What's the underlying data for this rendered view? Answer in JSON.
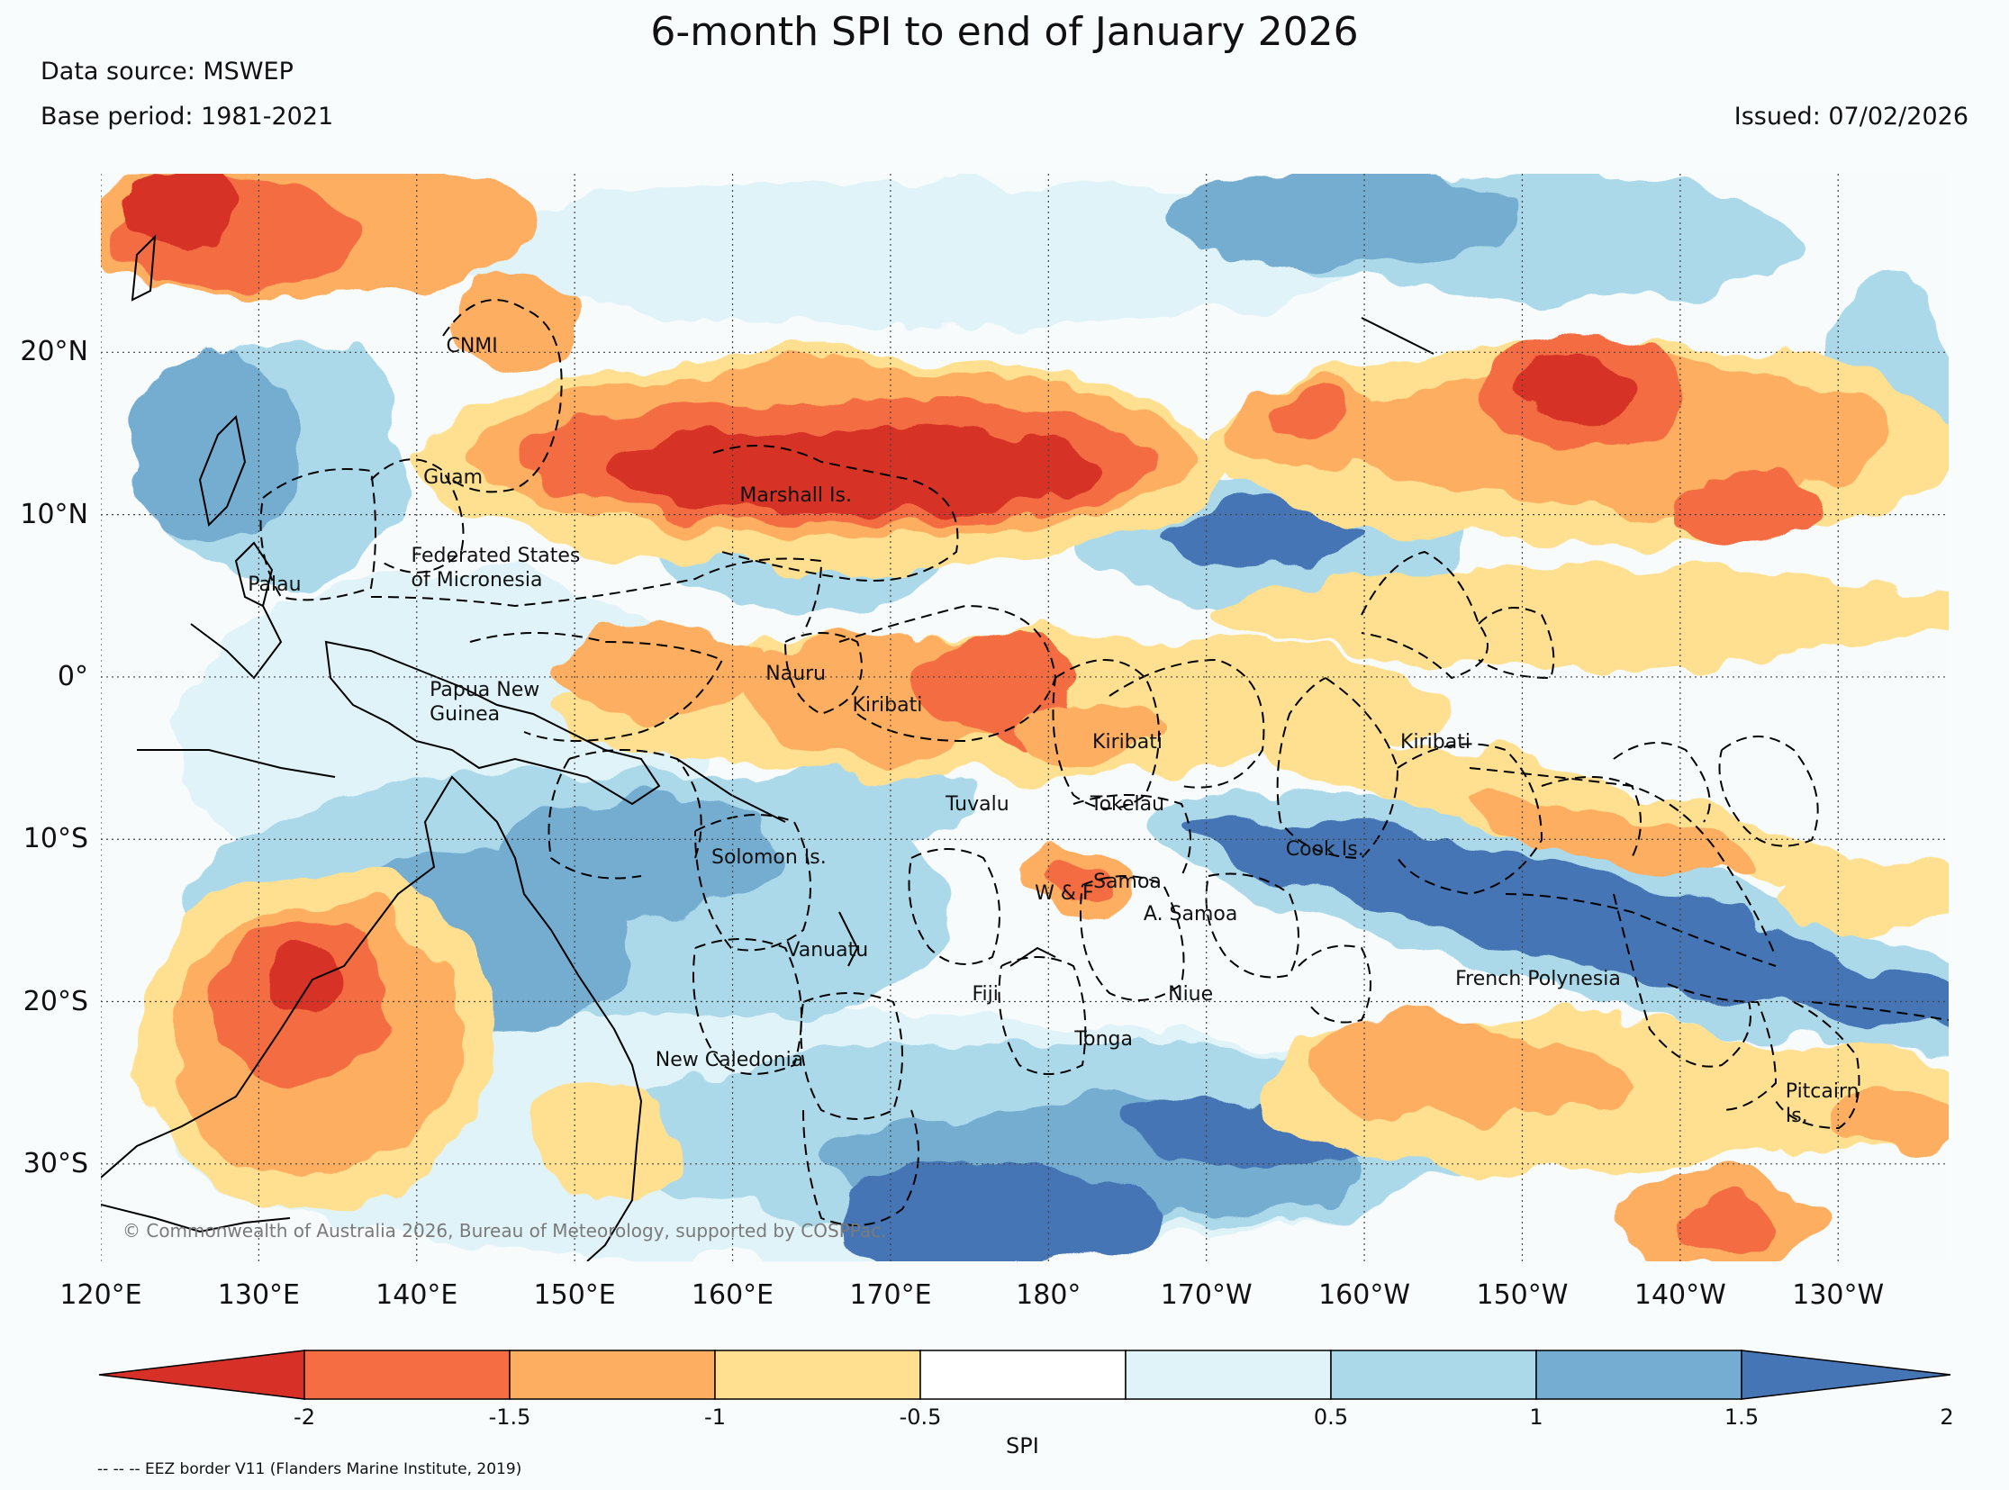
{
  "title": "6-month SPI to end of January 2026",
  "header": {
    "data_source": "Data source: MSWEP",
    "base_period": "Base period: 1981-2021",
    "issued": "Issued: 07/02/2026"
  },
  "map": {
    "lon_range": [
      120,
      237
    ],
    "lat_range": [
      -36,
      31
    ],
    "lat_ticks": [
      {
        "lat": 20,
        "label": "20°N"
      },
      {
        "lat": 10,
        "label": "10°N"
      },
      {
        "lat": 0,
        "label": "0°"
      },
      {
        "lat": -10,
        "label": "10°S"
      },
      {
        "lat": -20,
        "label": "20°S"
      },
      {
        "lat": -30,
        "label": "30°S"
      }
    ],
    "lon_ticks": [
      {
        "lon": 120,
        "label": "120°E"
      },
      {
        "lon": 130,
        "label": "130°E"
      },
      {
        "lon": 140,
        "label": "140°E"
      },
      {
        "lon": 150,
        "label": "150°E"
      },
      {
        "lon": 160,
        "label": "160°E"
      },
      {
        "lon": 170,
        "label": "170°E"
      },
      {
        "lon": 180,
        "label": "180°"
      },
      {
        "lon": 190,
        "label": "170°W"
      },
      {
        "lon": 200,
        "label": "160°W"
      },
      {
        "lon": 210,
        "label": "150°W"
      },
      {
        "lon": 220,
        "label": "140°W"
      },
      {
        "lon": 230,
        "label": "130°W"
      }
    ],
    "places": [
      {
        "name": "CNMI",
        "lon": 143.5,
        "lat": 20.4
      },
      {
        "name": "Guam",
        "lon": 142.3,
        "lat": 12.3
      },
      {
        "name": "Federated States\nof Micronesia",
        "lon": 145.0,
        "lat": 7.5
      },
      {
        "name": "Palau",
        "lon": 131.0,
        "lat": 5.7
      },
      {
        "name": "Marshall Is.",
        "lon": 164.0,
        "lat": 11.2
      },
      {
        "name": "Papua New\nGuinea",
        "lon": 144.3,
        "lat": -0.8
      },
      {
        "name": "Nauru",
        "lon": 164.0,
        "lat": 0.2
      },
      {
        "name": "Kiribati",
        "lon": 169.8,
        "lat": -1.7
      },
      {
        "name": "Kiribati",
        "lon": 185.0,
        "lat": -4.0
      },
      {
        "name": "Kiribati",
        "lon": 204.5,
        "lat": -4.0
      },
      {
        "name": "Tuvalu",
        "lon": 175.5,
        "lat": -7.8
      },
      {
        "name": "Tokelau",
        "lon": 185.0,
        "lat": -7.8
      },
      {
        "name": "Solomon Is.",
        "lon": 162.3,
        "lat": -11.1
      },
      {
        "name": "Cook Is.",
        "lon": 197.5,
        "lat": -10.6
      },
      {
        "name": "Samoa",
        "lon": 185.0,
        "lat": -12.6
      },
      {
        "name": "W & F",
        "lon": 181.0,
        "lat": -13.3
      },
      {
        "name": "A. Samoa",
        "lon": 189.0,
        "lat": -14.6
      },
      {
        "name": "Vanuatu",
        "lon": 166.0,
        "lat": -16.8
      },
      {
        "name": "French Polynesia",
        "lon": 211.0,
        "lat": -18.6
      },
      {
        "name": "Fiji",
        "lon": 176.0,
        "lat": -19.5
      },
      {
        "name": "Niue",
        "lon": 189.0,
        "lat": -19.5
      },
      {
        "name": "Tonga",
        "lon": 183.5,
        "lat": -22.3
      },
      {
        "name": "New Caledonia",
        "lon": 159.8,
        "lat": -23.6
      },
      {
        "name": "Pitcairn\nIs.",
        "lon": 229.0,
        "lat": -25.5
      }
    ],
    "copyright": "© Commonwealth of Australia 2026, Bureau of Meteorology, supported by COSPPac."
  },
  "colorbar": {
    "label": "SPI",
    "ticks": [
      "-2",
      "-1.5",
      "-1",
      "-0.5",
      "0.5",
      "1",
      "1.5",
      "2"
    ],
    "colors": [
      "#d73027",
      "#f46d43",
      "#fdae61",
      "#fee090",
      "#ffffff",
      "#e0f3f8",
      "#abd9e9",
      "#74add1",
      "#4575b4"
    ]
  },
  "footnote": "-- -- -- EEZ border V11 (Flanders Marine Institute, 2019)"
}
